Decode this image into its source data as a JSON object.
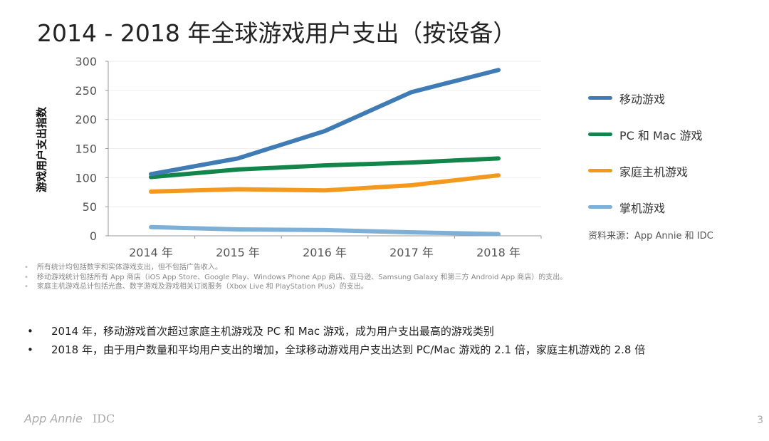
{
  "title": "2014 - 2018 年全球游戏用户支出（按设备）",
  "chart_data": {
    "type": "line",
    "title": "2014 - 2018 年全球游戏用户支出（按设备）",
    "ylabel": "游戏用户支出指数",
    "xlabel": "",
    "categories": [
      "2014 年",
      "2015 年",
      "2016 年",
      "2017 年",
      "2018 年"
    ],
    "ylim": [
      0,
      300
    ],
    "yticks": [
      "0",
      "50",
      "100",
      "150",
      "200",
      "250",
      "300"
    ],
    "grid": true,
    "legend": "right",
    "series": [
      {
        "name": "移动游戏",
        "color": "#3f7bb5",
        "values": [
          106,
          133,
          180,
          247,
          285
        ]
      },
      {
        "name": "PC 和 Mac 游戏",
        "color": "#12864a",
        "values": [
          101,
          114,
          121,
          126,
          133
        ]
      },
      {
        "name": "家庭主机游戏",
        "color": "#f39a1e",
        "values": [
          76,
          80,
          78,
          87,
          104
        ]
      },
      {
        "name": "掌机游戏",
        "color": "#7eafd6",
        "values": [
          15,
          11,
          10,
          6,
          3
        ]
      }
    ],
    "source": "资料来源：App Annie 和 IDC"
  },
  "notes": [
    "所有统计均包括数字和实体游戏支出，但不包括广告收入。",
    "移动游戏统计包括所有 App 商店（iOS App Store、Google Play、Windows Phone App 商店、亚马逊、Samsung Galaxy 和第三方 Android App 商店）的支出。",
    "家庭主机游戏总计包括光盘、数字游戏及游戏相关订阅服务（Xbox Live 和 PlayStation Plus）的支出。"
  ],
  "bullets": [
    "2014 年，移动游戏首次超过家庭主机游戏及 PC 和 Mac 游戏，成为用户支出最高的游戏类别",
    "2018 年，由于用户数量和平均用户支出的增加，全球移动游戏用户支出达到 PC/Mac 游戏的 2.1 倍，家庭主机游戏的 2.8 倍"
  ],
  "logos": {
    "app_annie": "App Annie",
    "idc": "IDC"
  },
  "page_number": "3"
}
